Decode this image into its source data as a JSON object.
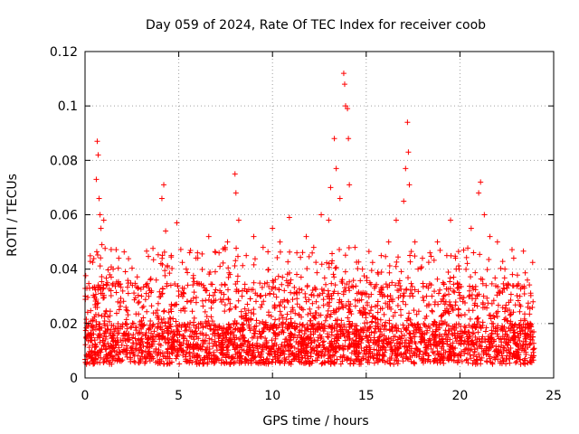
{
  "chart_data": {
    "type": "scatter",
    "title": "Day 059 of 2024, Rate Of TEC Index for receiver coob",
    "xlabel": "GPS time / hours",
    "ylabel": "ROTI / TECUs",
    "xlim": [
      0,
      25
    ],
    "ylim": [
      0,
      0.12
    ],
    "xticks": [
      0,
      5,
      10,
      15,
      20,
      25
    ],
    "xtick_labels": [
      "0",
      "5",
      "10",
      "15",
      "20",
      "25"
    ],
    "yticks": [
      0,
      0.02,
      0.04,
      0.06,
      0.08,
      0.1,
      0.12
    ],
    "ytick_labels": [
      "0",
      "0.02",
      "0.04",
      "0.06",
      "0.08",
      "0.1",
      "0.12"
    ],
    "grid": true,
    "marker": "+",
    "color": "#ff0000",
    "series": [
      {
        "name": "ROTI",
        "points": [
          [
            0.1,
            0.033
          ],
          [
            0.2,
            0.02
          ],
          [
            0.3,
            0.016
          ],
          [
            0.4,
            0.012
          ],
          [
            0.5,
            0.009
          ],
          [
            0.6,
            0.073
          ],
          [
            0.65,
            0.087
          ],
          [
            0.7,
            0.082
          ],
          [
            0.75,
            0.066
          ],
          [
            0.8,
            0.06
          ],
          [
            0.85,
            0.055
          ],
          [
            0.9,
            0.049
          ],
          [
            1.0,
            0.058
          ],
          [
            1.2,
            0.035
          ],
          [
            1.5,
            0.04
          ],
          [
            1.8,
            0.044
          ],
          [
            2.2,
            0.025
          ],
          [
            2.6,
            0.02
          ],
          [
            3.0,
            0.018
          ],
          [
            3.4,
            0.03
          ],
          [
            3.8,
            0.036
          ],
          [
            4.1,
            0.066
          ],
          [
            4.2,
            0.071
          ],
          [
            4.3,
            0.054
          ],
          [
            4.6,
            0.045
          ],
          [
            4.9,
            0.057
          ],
          [
            5.4,
            0.04
          ],
          [
            6.0,
            0.046
          ],
          [
            6.6,
            0.052
          ],
          [
            7.2,
            0.041
          ],
          [
            7.6,
            0.05
          ],
          [
            8.0,
            0.075
          ],
          [
            8.05,
            0.068
          ],
          [
            8.2,
            0.058
          ],
          [
            8.6,
            0.045
          ],
          [
            9.0,
            0.052
          ],
          [
            9.5,
            0.048
          ],
          [
            10.0,
            0.055
          ],
          [
            10.4,
            0.05
          ],
          [
            10.9,
            0.059
          ],
          [
            11.3,
            0.046
          ],
          [
            11.8,
            0.052
          ],
          [
            12.2,
            0.048
          ],
          [
            12.6,
            0.06
          ],
          [
            13.0,
            0.058
          ],
          [
            13.1,
            0.07
          ],
          [
            13.3,
            0.088
          ],
          [
            13.4,
            0.077
          ],
          [
            13.6,
            0.066
          ],
          [
            13.8,
            0.112
          ],
          [
            13.85,
            0.108
          ],
          [
            13.9,
            0.1
          ],
          [
            14.0,
            0.099
          ],
          [
            14.05,
            0.088
          ],
          [
            14.1,
            0.071
          ],
          [
            14.4,
            0.048
          ],
          [
            14.8,
            0.04
          ],
          [
            15.2,
            0.035
          ],
          [
            15.8,
            0.045
          ],
          [
            16.2,
            0.05
          ],
          [
            16.6,
            0.058
          ],
          [
            17.0,
            0.065
          ],
          [
            17.1,
            0.077
          ],
          [
            17.2,
            0.094
          ],
          [
            17.25,
            0.083
          ],
          [
            17.3,
            0.071
          ],
          [
            17.6,
            0.05
          ],
          [
            18.0,
            0.044
          ],
          [
            18.4,
            0.046
          ],
          [
            18.8,
            0.05
          ],
          [
            19.3,
            0.045
          ],
          [
            19.5,
            0.058
          ],
          [
            19.8,
            0.04
          ],
          [
            20.2,
            0.047
          ],
          [
            20.6,
            0.055
          ],
          [
            21.0,
            0.068
          ],
          [
            21.1,
            0.072
          ],
          [
            21.3,
            0.06
          ],
          [
            21.6,
            0.052
          ],
          [
            22.0,
            0.05
          ],
          [
            22.4,
            0.04
          ],
          [
            22.8,
            0.038
          ],
          [
            23.2,
            0.03
          ],
          [
            23.6,
            0.036
          ],
          [
            23.9,
            0.028
          ]
        ]
      }
    ],
    "dense_band": {
      "description_value_range": [
        0.005,
        0.02
      ],
      "x_range": [
        0,
        24
      ]
    }
  }
}
